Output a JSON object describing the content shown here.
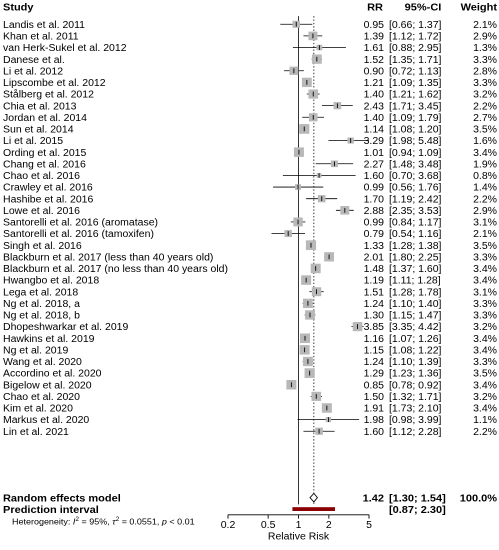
{
  "chart_data": {
    "type": "forest",
    "headers": {
      "study": "Study",
      "rr": "RR",
      "ci": "95%-CI",
      "weight": "Weight"
    },
    "studies": [
      {
        "label": "Landis et al. 2011",
        "rr": 0.95,
        "lo": 0.66,
        "hi": 1.37,
        "rr_text": "0.95",
        "ci_text": "[0.66; 1.37]",
        "weight_text": "2.1%",
        "weight": 2.1
      },
      {
        "label": "Khan et al. 2011",
        "rr": 1.39,
        "lo": 1.12,
        "hi": 1.72,
        "rr_text": "1.39",
        "ci_text": "[1.12; 1.72]",
        "weight_text": "2.9%",
        "weight": 2.9
      },
      {
        "label": "van Herk-Sukel et al. 2012",
        "rr": 1.61,
        "lo": 0.88,
        "hi": 2.95,
        "rr_text": "1.61",
        "ci_text": "[0.88; 2.95]",
        "weight_text": "1.3%",
        "weight": 1.3
      },
      {
        "label": "Danese et al.",
        "rr": 1.52,
        "lo": 1.35,
        "hi": 1.71,
        "rr_text": "1.52",
        "ci_text": "[1.35; 1.71]",
        "weight_text": "3.3%",
        "weight": 3.3
      },
      {
        "label": "Li et al. 2012",
        "rr": 0.9,
        "lo": 0.72,
        "hi": 1.13,
        "rr_text": "0.90",
        "ci_text": "[0.72; 1.13]",
        "weight_text": "2.8%",
        "weight": 2.8
      },
      {
        "label": "Lipscombe et al. 2012",
        "rr": 1.21,
        "lo": 1.09,
        "hi": 1.35,
        "rr_text": "1.21",
        "ci_text": "[1.09; 1.35]",
        "weight_text": "3.3%",
        "weight": 3.3
      },
      {
        "label": "Stålberg et al. 2012",
        "rr": 1.4,
        "lo": 1.21,
        "hi": 1.62,
        "rr_text": "1.40",
        "ci_text": "[1.21; 1.62]",
        "weight_text": "3.2%",
        "weight": 3.2
      },
      {
        "label": "Chia et al. 2013",
        "rr": 2.43,
        "lo": 1.71,
        "hi": 3.45,
        "rr_text": "2.43",
        "ci_text": "[1.71; 3.45]",
        "weight_text": "2.2%",
        "weight": 2.2
      },
      {
        "label": "Jordan et al. 2014",
        "rr": 1.4,
        "lo": 1.09,
        "hi": 1.79,
        "rr_text": "1.40",
        "ci_text": "[1.09; 1.79]",
        "weight_text": "2.7%",
        "weight": 2.7
      },
      {
        "label": "Sun et al. 2014",
        "rr": 1.14,
        "lo": 1.08,
        "hi": 1.2,
        "rr_text": "1.14",
        "ci_text": "[1.08; 1.20]",
        "weight_text": "3.5%",
        "weight": 3.5
      },
      {
        "label": "Li et al. 2015",
        "rr": 3.29,
        "lo": 1.98,
        "hi": 5.48,
        "rr_text": "3.29",
        "ci_text": "[1.98; 5.48]",
        "weight_text": "1.6%",
        "weight": 1.6
      },
      {
        "label": "Ording et al. 2015",
        "rr": 1.01,
        "lo": 0.94,
        "hi": 1.09,
        "rr_text": "1.01",
        "ci_text": "[0.94; 1.09]",
        "weight_text": "3.4%",
        "weight": 3.4
      },
      {
        "label": "Chang et al. 2016",
        "rr": 2.27,
        "lo": 1.48,
        "hi": 3.48,
        "rr_text": "2.27",
        "ci_text": "[1.48; 3.48]",
        "weight_text": "1.9%",
        "weight": 1.9
      },
      {
        "label": "Chao et al. 2016",
        "rr": 1.6,
        "lo": 0.7,
        "hi": 3.68,
        "rr_text": "1.60",
        "ci_text": "[0.70; 3.68]",
        "weight_text": "0.8%",
        "weight": 0.8
      },
      {
        "label": "Crawley et al. 2016",
        "rr": 0.99,
        "lo": 0.56,
        "hi": 1.76,
        "rr_text": "0.99",
        "ci_text": "[0.56; 1.76]",
        "weight_text": "1.4%",
        "weight": 1.4
      },
      {
        "label": "Hashibe et al. 2016",
        "rr": 1.7,
        "lo": 1.19,
        "hi": 2.42,
        "rr_text": "1.70",
        "ci_text": "[1.19; 2.42]",
        "weight_text": "2.2%",
        "weight": 2.2
      },
      {
        "label": "Lowe et al. 2016",
        "rr": 2.88,
        "lo": 2.35,
        "hi": 3.53,
        "rr_text": "2.88",
        "ci_text": "[2.35; 3.53]",
        "weight_text": "2.9%",
        "weight": 2.9
      },
      {
        "label": "Santorelli et al. 2016 (aromatase)",
        "rr": 0.99,
        "lo": 0.84,
        "hi": 1.17,
        "rr_text": "0.99",
        "ci_text": "[0.84; 1.17]",
        "weight_text": "3.1%",
        "weight": 3.1
      },
      {
        "label": "Santorelli et al. 2016 (tamoxifen)",
        "rr": 0.79,
        "lo": 0.54,
        "hi": 1.16,
        "rr_text": "0.79",
        "ci_text": "[0.54; 1.16]",
        "weight_text": "2.1%",
        "weight": 2.1
      },
      {
        "label": "Singh et al. 2016",
        "rr": 1.33,
        "lo": 1.28,
        "hi": 1.38,
        "rr_text": "1.33",
        "ci_text": "[1.28; 1.38]",
        "weight_text": "3.5%",
        "weight": 3.5
      },
      {
        "label": "Blackburn et al. 2017 (less than 40 years old)",
        "rr": 2.01,
        "lo": 1.8,
        "hi": 2.25,
        "rr_text": "2.01",
        "ci_text": "[1.80; 2.25]",
        "weight_text": "3.3%",
        "weight": 3.3
      },
      {
        "label": "Blackburn et al. 2017 (no less than 40 years old)",
        "rr": 1.48,
        "lo": 1.37,
        "hi": 1.6,
        "rr_text": "1.48",
        "ci_text": "[1.37; 1.60]",
        "weight_text": "3.4%",
        "weight": 3.4
      },
      {
        "label": "Hwangbo et al. 2018",
        "rr": 1.19,
        "lo": 1.11,
        "hi": 1.28,
        "rr_text": "1.19",
        "ci_text": "[1.11; 1.28]",
        "weight_text": "3.4%",
        "weight": 3.4
      },
      {
        "label": "Lega et al. 2018",
        "rr": 1.51,
        "lo": 1.28,
        "hi": 1.78,
        "rr_text": "1.51",
        "ci_text": "[1.28; 1.78]",
        "weight_text": "3.1%",
        "weight": 3.1
      },
      {
        "label": "Ng et al. 2018, a",
        "rr": 1.24,
        "lo": 1.1,
        "hi": 1.4,
        "rr_text": "1.24",
        "ci_text": "[1.10; 1.40]",
        "weight_text": "3.3%",
        "weight": 3.3
      },
      {
        "label": "Ng et al. 2018, b",
        "rr": 1.3,
        "lo": 1.15,
        "hi": 1.47,
        "rr_text": "1.30",
        "ci_text": "[1.15; 1.47]",
        "weight_text": "3.3%",
        "weight": 3.3
      },
      {
        "label": "Dhopeshwarkar et al. 2019",
        "rr": 3.85,
        "lo": 3.35,
        "hi": 4.42,
        "rr_text": "3.85",
        "ci_text": "[3.35; 4.42]",
        "weight_text": "3.2%",
        "weight": 3.2
      },
      {
        "label": "Hawkins et al. 2019",
        "rr": 1.16,
        "lo": 1.07,
        "hi": 1.26,
        "rr_text": "1.16",
        "ci_text": "[1.07; 1.26]",
        "weight_text": "3.4%",
        "weight": 3.4
      },
      {
        "label": "Ng et al. 2019",
        "rr": 1.15,
        "lo": 1.08,
        "hi": 1.22,
        "rr_text": "1.15",
        "ci_text": "[1.08; 1.22]",
        "weight_text": "3.4%",
        "weight": 3.4
      },
      {
        "label": "Wang et al. 2020",
        "rr": 1.24,
        "lo": 1.1,
        "hi": 1.39,
        "rr_text": "1.24",
        "ci_text": "[1.10; 1.39]",
        "weight_text": "3.3%",
        "weight": 3.3
      },
      {
        "label": "Accordino et al. 2020",
        "rr": 1.29,
        "lo": 1.23,
        "hi": 1.36,
        "rr_text": "1.29",
        "ci_text": "[1.23; 1.36]",
        "weight_text": "3.5%",
        "weight": 3.5
      },
      {
        "label": "Bigelow et al. 2020",
        "rr": 0.85,
        "lo": 0.78,
        "hi": 0.92,
        "rr_text": "0.85",
        "ci_text": "[0.78; 0.92]",
        "weight_text": "3.4%",
        "weight": 3.4
      },
      {
        "label": "Chao et al. 2020",
        "rr": 1.5,
        "lo": 1.32,
        "hi": 1.71,
        "rr_text": "1.50",
        "ci_text": "[1.32; 1.71]",
        "weight_text": "3.2%",
        "weight": 3.2
      },
      {
        "label": "Kim et al. 2020",
        "rr": 1.91,
        "lo": 1.73,
        "hi": 2.1,
        "rr_text": "1.91",
        "ci_text": "[1.73; 2.10]",
        "weight_text": "3.4%",
        "weight": 3.4
      },
      {
        "label": "Markus et al. 2020",
        "rr": 1.98,
        "lo": 0.98,
        "hi": 3.99,
        "rr_text": "1.98",
        "ci_text": "[0.98; 3.99]",
        "weight_text": "1.1%",
        "weight": 1.1
      },
      {
        "label": "Lin et al. 2021",
        "rr": 1.6,
        "lo": 1.12,
        "hi": 2.28,
        "rr_text": "1.60",
        "ci_text": "[1.12; 2.28]",
        "weight_text": "2.2%",
        "weight": 2.2
      }
    ],
    "summary": {
      "label": "Random effects model",
      "rr": 1.42,
      "lo": 1.3,
      "hi": 1.54,
      "rr_text": "1.42",
      "ci_text": "[1.30; 1.54]",
      "weight_text": "100.0%"
    },
    "prediction": {
      "label": "Prediction interval",
      "lo": 0.87,
      "hi": 2.3,
      "ci_text": "[0.87; 2.30]"
    },
    "heterogeneity": {
      "prefix": "Heterogeneity: ",
      "i2_symbol": "I",
      "i2_value": " = 95%, ",
      "tau_symbol": "τ",
      "tau_value": " = 0.0551, ",
      "p_symbol": "p",
      "p_value": " < 0.01"
    },
    "x_axis": {
      "scale": "log",
      "ticks": [
        0.2,
        0.5,
        1,
        2,
        5
      ],
      "tick_labels": [
        "0.2",
        "0.5",
        "1",
        "2",
        "5"
      ],
      "label": "Relative Risk",
      "range": [
        0.2,
        5
      ]
    },
    "reference_line": 1,
    "summary_line": 1.42,
    "colors": {
      "square": "#b8b8b8",
      "line": "#000000",
      "diamond": "#ffffff",
      "prediction": "#8b0000"
    }
  }
}
